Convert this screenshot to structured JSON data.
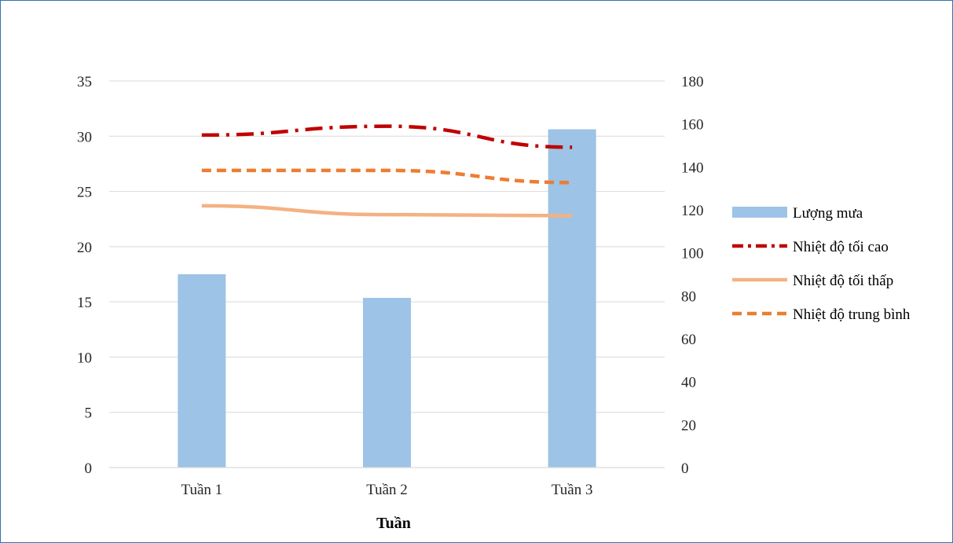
{
  "chart_data": {
    "type": "bar",
    "categories": [
      "Tuần 1",
      "Tuần 2",
      "Tuần 3"
    ],
    "xlabel": "Tuần",
    "grid": true,
    "legend_position": "right",
    "y_left": {
      "range": [
        0,
        35
      ],
      "ticks": [
        0,
        5,
        10,
        15,
        20,
        25,
        30,
        35
      ]
    },
    "y_right": {
      "range": [
        0,
        180
      ],
      "ticks": [
        0,
        20,
        40,
        60,
        80,
        100,
        120,
        140,
        160,
        180
      ]
    },
    "series": [
      {
        "name": "Lượng mưa",
        "type": "bar",
        "axis": "right",
        "color": "#9DC3E6",
        "values": [
          90,
          79,
          157.5
        ]
      },
      {
        "name": "Nhiệt độ tối cao",
        "type": "line",
        "axis": "left",
        "color": "#C00000",
        "dash": "dash-dot",
        "values": [
          30.1,
          30.9,
          29.0
        ]
      },
      {
        "name": "Nhiệt độ tối thấp",
        "type": "line",
        "axis": "left",
        "color": "#F4B183",
        "dash": "solid",
        "values": [
          23.7,
          22.9,
          22.8
        ]
      },
      {
        "name": "Nhiệt độ trung bình",
        "type": "line",
        "axis": "left",
        "color": "#ED7D31",
        "dash": "dashed",
        "values": [
          26.9,
          26.9,
          25.8
        ]
      }
    ]
  }
}
